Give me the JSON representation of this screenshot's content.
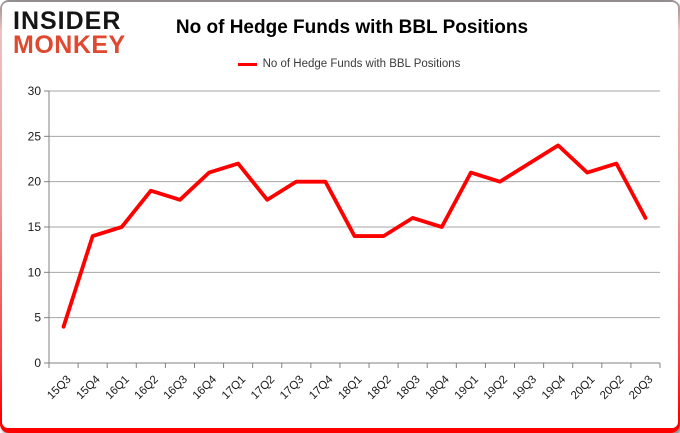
{
  "logo": {
    "line1": "INSIDER",
    "line2": "MONKEY",
    "line1_color": "#151515",
    "line2_color": "#e0492f"
  },
  "header": {
    "title": "No of Hedge Funds with BBL Positions"
  },
  "legend": {
    "label": "No of Hedge Funds with BBL Positions",
    "swatch_color": "#ff0000"
  },
  "colors": {
    "series_line": "#ff0000",
    "gridline": "#a6a6a6",
    "axis": "#808080",
    "tick_label": "#1a1a1a",
    "frame_top": "#8c8c8c",
    "frame_bottom": "#ff0000"
  },
  "chart_data": {
    "type": "line",
    "title": "No of Hedge Funds with BBL Positions",
    "categories": [
      "15Q3",
      "15Q4",
      "16Q1",
      "16Q2",
      "16Q3",
      "16Q4",
      "17Q1",
      "17Q2",
      "17Q3",
      "17Q4",
      "18Q1",
      "18Q2",
      "18Q3",
      "18Q4",
      "19Q1",
      "19Q2",
      "19Q3",
      "19Q4",
      "20Q1",
      "20Q2",
      "20Q3"
    ],
    "series": [
      {
        "name": "No of Hedge Funds with BBL Positions",
        "color": "#ff0000",
        "values": [
          4,
          14,
          15,
          19,
          18,
          21,
          22,
          18,
          20,
          20,
          14,
          14,
          16,
          15,
          21,
          20,
          22,
          24,
          21,
          22,
          16
        ]
      }
    ],
    "xlabel": "",
    "ylabel": "",
    "ylim": [
      0,
      30
    ],
    "ytick_step": 5,
    "yticks": [
      0,
      5,
      10,
      15,
      20,
      25,
      30
    ],
    "grid": true,
    "legend_position": "top-center"
  }
}
